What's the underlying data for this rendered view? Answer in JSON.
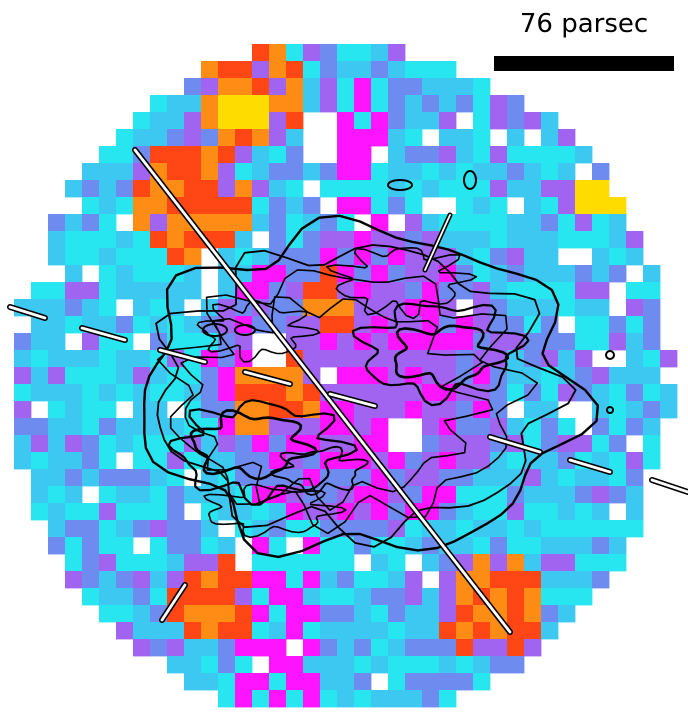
{
  "scale_bar": {
    "label": "76 parsec"
  },
  "colors": {
    "cyan": "#28e6f0",
    "sky": "#3cc8f0",
    "periwinkle": "#6e8cf0",
    "violet": "#a064f0",
    "magenta": "#ff14ff",
    "orange": "#ff8c14",
    "red": "#ff4614",
    "yellow": "#ffdc00",
    "contour": "#000000"
  }
}
